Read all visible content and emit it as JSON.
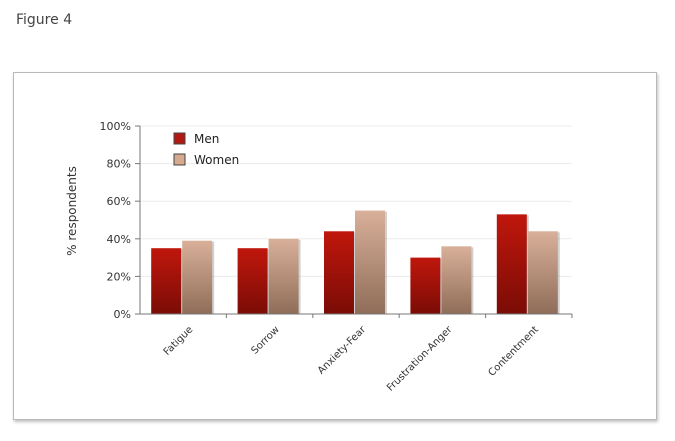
{
  "figure": {
    "title": "Figure 4"
  },
  "chart_data": {
    "type": "bar",
    "categories": [
      "Fatigue",
      "Sorrow",
      "Anxiety-Fear",
      "Frustration-Anger",
      "Contentment"
    ],
    "series": [
      {
        "name": "Men",
        "values": [
          35,
          35,
          44,
          30,
          53
        ]
      },
      {
        "name": "Women",
        "values": [
          39,
          40,
          55,
          36,
          44
        ]
      }
    ],
    "ylabel": "% respondents",
    "ylim": [
      0,
      100
    ],
    "yticks": [
      "0%",
      "20%",
      "40%",
      "60%",
      "80%",
      "100%"
    ],
    "legend": "top-left",
    "grid": true,
    "colors": {
      "Men": "#b01a10",
      "Women": "#d4a98e"
    }
  }
}
